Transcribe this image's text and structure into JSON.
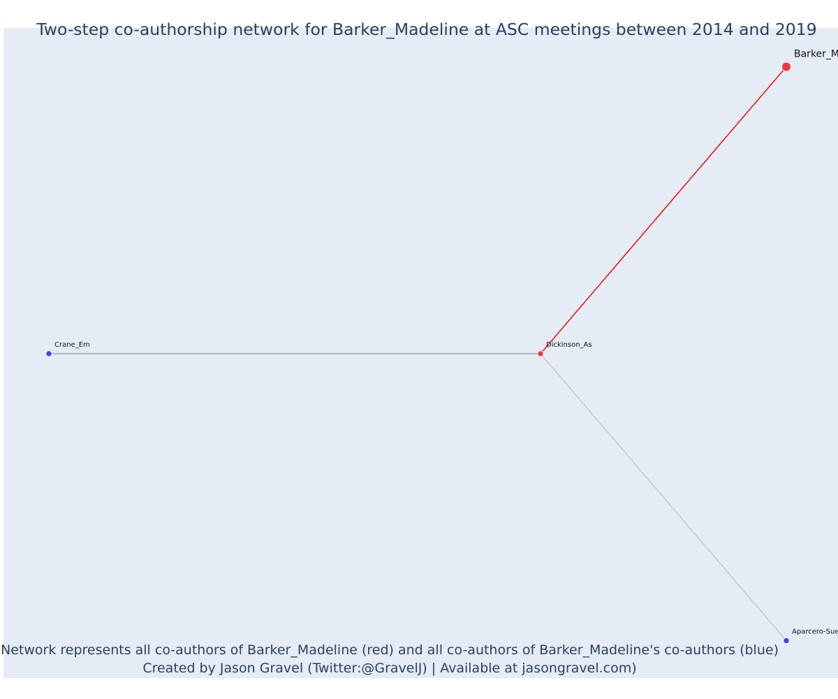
{
  "title": "Two-step co-authorship network for Barker_Madeline at ASC meetings between 2014 and 2019",
  "caption": {
    "line1": "Network represents all co-authors of Barker_Madeline (red) and all co-authors of Barker_Madeline's co-authors (blue)",
    "line2": "Created by Jason Gravel (Twitter:@GravelJ) | Available at jasongravel.com)"
  },
  "colors": {
    "plot_background": "#e5ecf6",
    "page_background": "#ffffff",
    "text": "#2a3f5f",
    "focal_node": "#ef3b3b",
    "coauthor_node": "#ef3b3b",
    "second_step_node": "#4046e0",
    "focal_edge": "#e01b1b",
    "other_edge": "#bbbbc8",
    "crane_edge": "#7a7f9a"
  },
  "chart_data": {
    "type": "network",
    "title": "Two-step co-authorship network for Barker_Madeline at ASC meetings between 2014 and 2019",
    "nodes": [
      {
        "id": "Barker_M",
        "label": "Barker_M",
        "group": "focal",
        "x": 1.0,
        "y": 1.0
      },
      {
        "id": "Dickinson_As",
        "label": "Dickinson_As",
        "group": "co-author",
        "x": 0.5,
        "y": 0.0
      },
      {
        "id": "Crane_Em",
        "label": "Crane_Em",
        "group": "co-author-of-co-author",
        "x": -0.5,
        "y": 0.0
      },
      {
        "id": "Aparcero-Sue",
        "label": "Aparcero-Sue",
        "group": "co-author-of-co-author",
        "x": 1.0,
        "y": -1.0
      }
    ],
    "edges": [
      {
        "source": "Barker_M",
        "target": "Dickinson_As",
        "kind": "focal"
      },
      {
        "source": "Dickinson_As",
        "target": "Crane_Em",
        "kind": "crane"
      },
      {
        "source": "Dickinson_As",
        "target": "Aparcero-Sue",
        "kind": "other"
      }
    ]
  }
}
